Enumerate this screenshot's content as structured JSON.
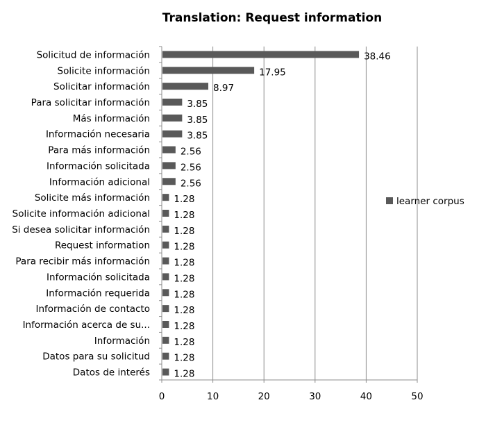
{
  "chart_data": {
    "type": "bar",
    "orientation": "horizontal",
    "title": "Translation: Request information",
    "xlabel": "",
    "ylabel": "",
    "xlim": [
      0,
      50
    ],
    "xticks": [
      0,
      10,
      20,
      30,
      40,
      50
    ],
    "grid": "vertical",
    "legend_position": "right",
    "bar_color": "#595959",
    "categories": [
      "Solicitud de información",
      "Solicite información",
      "Solicitar información",
      "Para solicitar información",
      "Más información",
      "Información necesaria",
      "Para más información",
      "Información solicitada",
      "Información adicional",
      "Solicite más información",
      "Solicite información adicional",
      "Si desea solicitar información",
      "Request information",
      "Para recibir más información",
      "Información solicitada",
      "Información requerida",
      "Información de contacto",
      "Información acerca de su...",
      "Información",
      "Datos para su solicitud",
      "Datos de interés"
    ],
    "series": [
      {
        "name": "learner corpus",
        "values": [
          38.46,
          17.95,
          8.97,
          3.85,
          3.85,
          3.85,
          2.56,
          2.56,
          2.56,
          1.28,
          1.28,
          1.28,
          1.28,
          1.28,
          1.28,
          1.28,
          1.28,
          1.28,
          1.28,
          1.28,
          1.28
        ],
        "labels": [
          "38.46",
          "17.95",
          "8.97",
          "3.85",
          "3.85",
          "3.85",
          "2.56",
          "2.56",
          "2.56",
          "1.28",
          "1.28",
          "1.28",
          "1.28",
          "1.28",
          "1.28",
          "1.28",
          "1.28",
          "1.28",
          "1.28",
          "1.28",
          "1.28"
        ]
      }
    ]
  }
}
